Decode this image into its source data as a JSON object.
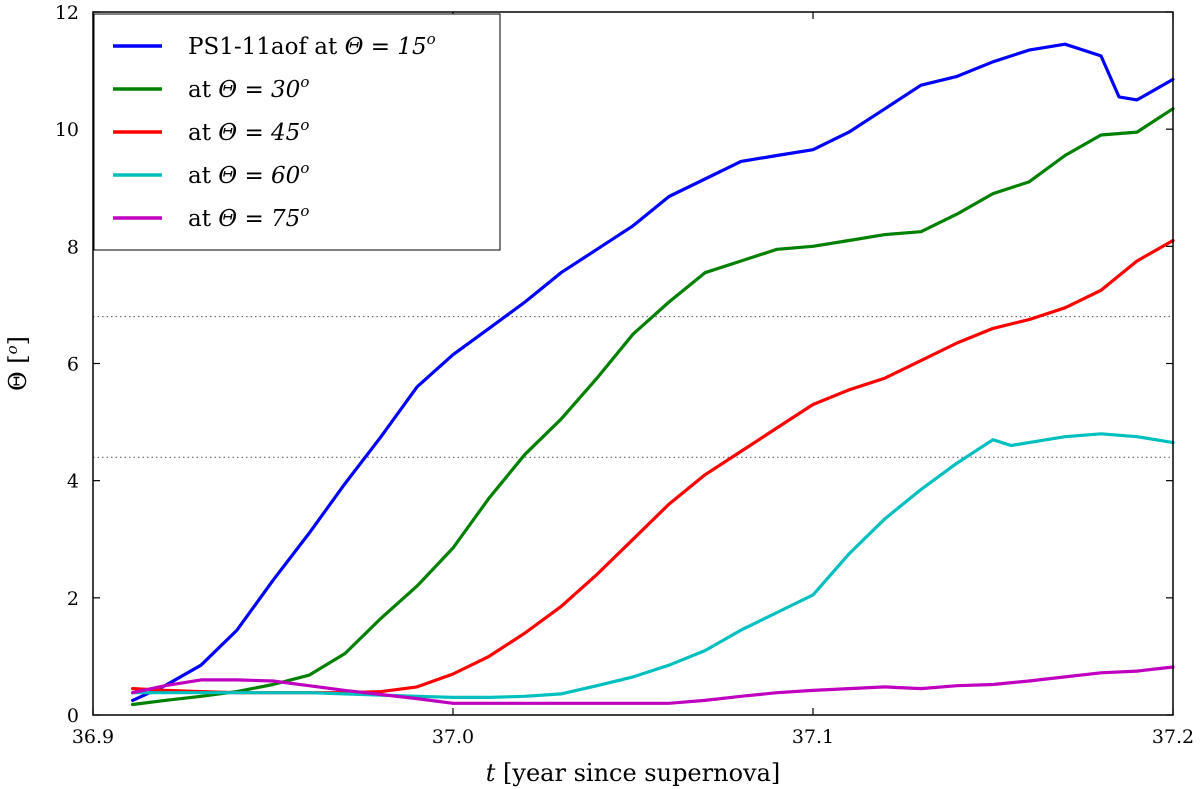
{
  "chart_data": {
    "type": "line",
    "xlabel": "t [year since supernova]",
    "xlabel_var": "t",
    "xlabel_rest": " [year since supernova]",
    "ylabel": "Θ [o]",
    "ylabel_var": "Θ",
    "ylabel_unit_open": "[",
    "ylabel_unit_sup": "o",
    "ylabel_unit_close": "]",
    "xlim": [
      36.9,
      37.2
    ],
    "ylim": [
      0,
      12
    ],
    "x_ticks": [
      36.9,
      37.0,
      37.1,
      37.2
    ],
    "x_tick_labels": [
      "36.9",
      "37.0",
      "37.1",
      "37.2"
    ],
    "y_ticks": [
      0,
      2,
      4,
      6,
      8,
      10,
      12
    ],
    "y_tick_labels": [
      "0",
      "2",
      "4",
      "6",
      "8",
      "10",
      "12"
    ],
    "grid": false,
    "legend_position": "top-left",
    "hlines": [
      6.8,
      4.4
    ],
    "series": [
      {
        "name": "PS1-11aof at Θ = 15°",
        "legend_prefix": "PS1-11aof at ",
        "legend_eq": "Θ = 15",
        "legend_sup": "o",
        "color": "#0000ff",
        "x": [
          36.911,
          36.92,
          36.93,
          36.94,
          36.95,
          36.96,
          36.97,
          36.98,
          36.99,
          37.0,
          37.01,
          37.02,
          37.03,
          37.04,
          37.05,
          37.06,
          37.07,
          37.08,
          37.09,
          37.1,
          37.11,
          37.12,
          37.13,
          37.14,
          37.15,
          37.16,
          37.17,
          37.18,
          37.185,
          37.19,
          37.2
        ],
        "y": [
          0.25,
          0.5,
          0.85,
          1.45,
          2.3,
          3.1,
          3.95,
          4.75,
          5.6,
          6.15,
          6.6,
          7.05,
          7.55,
          7.95,
          8.35,
          8.85,
          9.15,
          9.45,
          9.55,
          9.65,
          9.95,
          10.35,
          10.75,
          10.9,
          11.15,
          11.35,
          11.45,
          11.25,
          10.55,
          10.5,
          10.85
        ]
      },
      {
        "name": "at Θ = 30°",
        "legend_prefix": "at ",
        "legend_eq": "Θ = 30",
        "legend_sup": "o",
        "color": "#008000",
        "x": [
          36.911,
          36.92,
          36.93,
          36.94,
          36.95,
          36.96,
          36.97,
          36.98,
          36.99,
          37.0,
          37.01,
          37.02,
          37.03,
          37.04,
          37.05,
          37.06,
          37.07,
          37.08,
          37.09,
          37.1,
          37.11,
          37.12,
          37.13,
          37.14,
          37.15,
          37.16,
          37.17,
          37.18,
          37.19,
          37.2
        ],
        "y": [
          0.18,
          0.25,
          0.32,
          0.4,
          0.52,
          0.68,
          1.05,
          1.65,
          2.2,
          2.85,
          3.7,
          4.45,
          5.05,
          5.75,
          6.5,
          7.05,
          7.55,
          7.75,
          7.95,
          8.0,
          8.1,
          8.2,
          8.25,
          8.55,
          8.9,
          9.1,
          9.55,
          9.9,
          9.95,
          10.35
        ]
      },
      {
        "name": "at Θ = 45°",
        "legend_prefix": "at ",
        "legend_eq": "Θ = 45",
        "legend_sup": "o",
        "color": "#ff0000",
        "x": [
          36.911,
          36.92,
          36.93,
          36.94,
          36.95,
          36.96,
          36.97,
          36.98,
          36.99,
          37.0,
          37.01,
          37.02,
          37.03,
          37.04,
          37.05,
          37.06,
          37.07,
          37.08,
          37.09,
          37.1,
          37.11,
          37.12,
          37.13,
          37.14,
          37.15,
          37.16,
          37.17,
          37.18,
          37.19,
          37.2
        ],
        "y": [
          0.45,
          0.42,
          0.4,
          0.38,
          0.38,
          0.38,
          0.38,
          0.4,
          0.48,
          0.7,
          1.0,
          1.4,
          1.85,
          2.4,
          3.0,
          3.6,
          4.1,
          4.5,
          4.9,
          5.3,
          5.55,
          5.75,
          6.05,
          6.35,
          6.6,
          6.75,
          6.95,
          7.25,
          7.75,
          8.1
        ]
      },
      {
        "name": "at Θ = 60°",
        "legend_prefix": "at ",
        "legend_eq": "Θ = 60",
        "legend_sup": "o",
        "color": "#00bfbf",
        "x": [
          36.911,
          36.92,
          36.93,
          36.94,
          36.95,
          36.96,
          36.97,
          36.98,
          36.99,
          37.0,
          37.01,
          37.02,
          37.03,
          37.04,
          37.05,
          37.06,
          37.07,
          37.08,
          37.09,
          37.1,
          37.11,
          37.12,
          37.13,
          37.14,
          37.15,
          37.155,
          37.16,
          37.17,
          37.18,
          37.19,
          37.2
        ],
        "y": [
          0.38,
          0.38,
          0.38,
          0.38,
          0.38,
          0.38,
          0.36,
          0.34,
          0.32,
          0.3,
          0.3,
          0.32,
          0.36,
          0.5,
          0.65,
          0.85,
          1.1,
          1.45,
          1.75,
          2.05,
          2.75,
          3.35,
          3.85,
          4.3,
          4.7,
          4.6,
          4.65,
          4.75,
          4.8,
          4.75,
          4.65
        ]
      },
      {
        "name": "at Θ = 75°",
        "legend_prefix": "at ",
        "legend_eq": "Θ = 75",
        "legend_sup": "o",
        "color": "#bf00bf",
        "x": [
          36.911,
          36.92,
          36.93,
          36.94,
          36.95,
          36.96,
          36.97,
          36.98,
          36.99,
          37.0,
          37.01,
          37.02,
          37.03,
          37.04,
          37.05,
          37.06,
          37.07,
          37.08,
          37.09,
          37.1,
          37.11,
          37.12,
          37.13,
          37.14,
          37.15,
          37.16,
          37.17,
          37.18,
          37.19,
          37.2
        ],
        "y": [
          0.38,
          0.5,
          0.6,
          0.6,
          0.58,
          0.5,
          0.42,
          0.35,
          0.28,
          0.2,
          0.2,
          0.2,
          0.2,
          0.2,
          0.2,
          0.2,
          0.25,
          0.32,
          0.38,
          0.42,
          0.45,
          0.48,
          0.45,
          0.5,
          0.52,
          0.58,
          0.65,
          0.72,
          0.75,
          0.82
        ]
      }
    ]
  }
}
